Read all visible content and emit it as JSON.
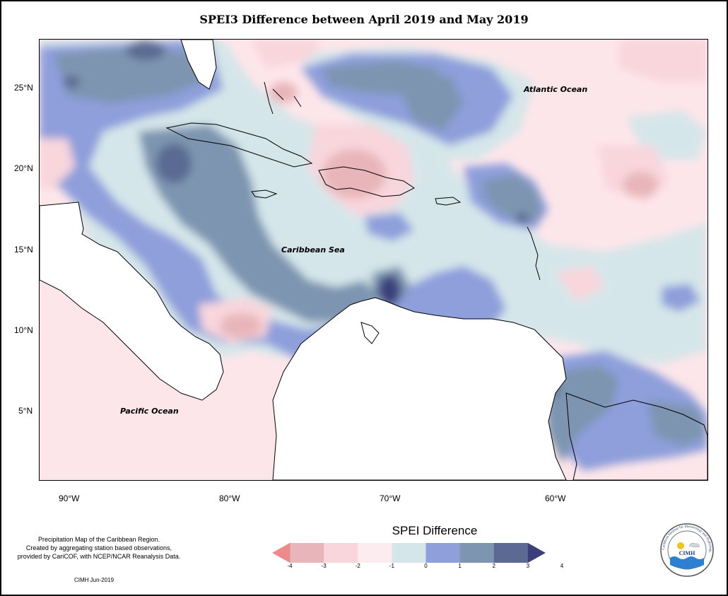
{
  "title": "SPEI3 Difference between April 2019 and May 2019",
  "map": {
    "labels": {
      "atlantic": "Atlantic Ocean",
      "caribbean": "Caribbean Sea",
      "pacific": "Pacific Ocean"
    },
    "lat_ticks": [
      "25°N",
      "20°N",
      "15°N",
      "10°N",
      "5°N"
    ],
    "lon_ticks": [
      "90°W",
      "80°W",
      "70°W",
      "60°W"
    ],
    "extent": {
      "lon": [
        -92,
        -50
      ],
      "lat": [
        1,
        28
      ]
    }
  },
  "legend": {
    "title": "SPEI Difference",
    "ticks": [
      "-4",
      "-3",
      "-2",
      "-1",
      "0",
      "1",
      "2",
      "3",
      "4"
    ],
    "colors": [
      "#ef8a8c",
      "#e8b6ba",
      "#f8d6dc",
      "#fdecef",
      "#d5e6ea",
      "#8e9fdb",
      "#7d95b0",
      "#5a6a92",
      "#3a3f7a"
    ]
  },
  "footnote": {
    "lines": [
      "Precipitation Map of the Caribbean Region.",
      "Created by aggregating station based observations,",
      "provided by CariCOF, with NCEP/NCAR Reanalysis Data."
    ],
    "credit": "CIMH Jun-2019"
  },
  "logo": {
    "text": "CIMH",
    "ring_text": "Caribbean Institute for Meteorology and Hydrology"
  }
}
